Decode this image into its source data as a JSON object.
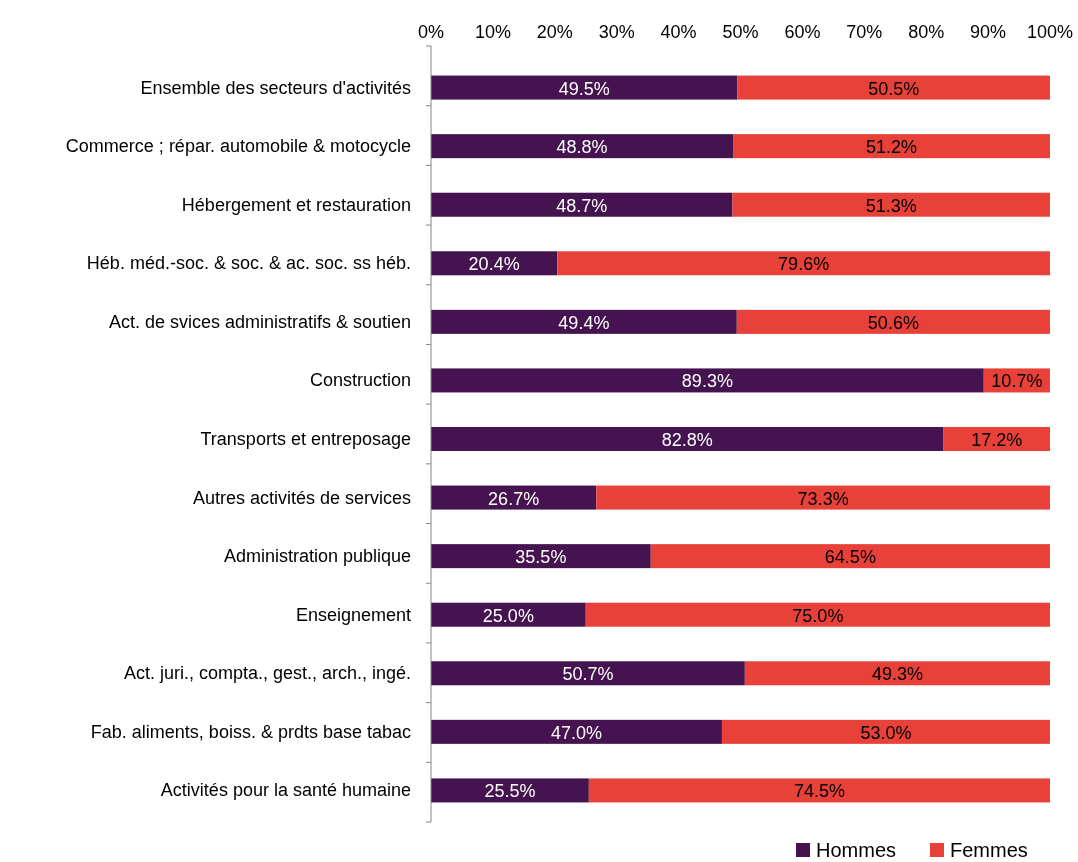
{
  "chart_data": {
    "type": "bar",
    "orientation": "horizontal",
    "stacked": true,
    "categories": [
      "Ensemble des secteurs d'activités",
      "Commerce ; répar. automobile & motocycle",
      "Hébergement et restauration",
      "Héb. méd.-soc. & soc. & ac. soc. ss héb.",
      "Act. de svices administratifs & soutien",
      "Construction",
      "Transports et entreposage",
      "Autres activités de services",
      "Administration publique",
      "Enseignement",
      "Act. juri., compta., gest., arch., ingé.",
      "Fab. aliments, boiss. & prdts base tabac",
      "Activités pour la santé humaine"
    ],
    "series": [
      {
        "name": "Hommes",
        "color": "#45134f",
        "values": [
          49.5,
          48.8,
          48.7,
          20.4,
          49.4,
          89.3,
          82.8,
          26.7,
          35.5,
          25.0,
          50.7,
          47.0,
          25.5
        ],
        "value_labels": [
          "49.5%",
          "48.8%",
          "48.7%",
          "20.4%",
          "49.4%",
          "89.3%",
          "82.8%",
          "26.7%",
          "35.5%",
          "25.0%",
          "50.7%",
          "47.0%",
          "25.5%"
        ]
      },
      {
        "name": "Femmes",
        "color": "#e8413a",
        "values": [
          50.5,
          51.2,
          51.3,
          79.6,
          50.6,
          10.7,
          17.2,
          73.3,
          64.5,
          75.0,
          49.3,
          53.0,
          74.5
        ],
        "value_labels": [
          "50.5%",
          "51.2%",
          "51.3%",
          "79.6%",
          "50.6%",
          "10.7%",
          "17.2%",
          "73.3%",
          "64.5%",
          "75.0%",
          "49.3%",
          "53.0%",
          "74.5%"
        ]
      }
    ],
    "xlim": [
      0,
      100
    ],
    "xticks": [
      {
        "value": 0,
        "label": "0%"
      },
      {
        "value": 10,
        "label": "10%"
      },
      {
        "value": 20,
        "label": "20%"
      },
      {
        "value": 30,
        "label": "30%"
      },
      {
        "value": 40,
        "label": "40%"
      },
      {
        "value": 50,
        "label": "50%"
      },
      {
        "value": 60,
        "label": "60%"
      },
      {
        "value": 70,
        "label": "70%"
      },
      {
        "value": 80,
        "label": "80%"
      },
      {
        "value": 90,
        "label": "90%"
      },
      {
        "value": 100,
        "label": "100%"
      }
    ],
    "grid": false,
    "legend": "bottom right"
  }
}
